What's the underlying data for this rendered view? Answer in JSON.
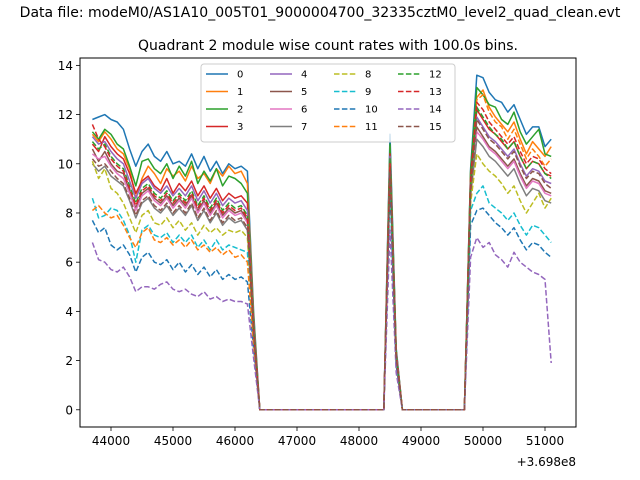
{
  "figure": {
    "suptitle": "Data file: modeM0/AS1A10_005T01_9000004700_32335cztM0_level2_quad_clean.evt"
  },
  "chart_data": {
    "type": "line",
    "title": "Quadrant 2 module wise count rates with 100.0s bins.",
    "xlabel": "",
    "ylabel": "",
    "x_offset_label": "+3.698e8",
    "xlim": [
      43500,
      51500
    ],
    "ylim": [
      -0.7,
      14.3
    ],
    "xticks": [
      44000,
      45000,
      46000,
      47000,
      48000,
      49000,
      50000,
      51000
    ],
    "xtick_labels": [
      "44000",
      "45000",
      "46000",
      "47000",
      "48000",
      "49000",
      "50000",
      "51000"
    ],
    "yticks": [
      0,
      2,
      4,
      6,
      8,
      10,
      12,
      14
    ],
    "ytick_labels": [
      "0",
      "2",
      "4",
      "6",
      "8",
      "10",
      "12",
      "14"
    ],
    "grid": false,
    "legend_position": "top-center",
    "legend_columns": 4,
    "x": [
      43700,
      43800,
      43900,
      44000,
      44100,
      44200,
      44300,
      44400,
      44500,
      44600,
      44700,
      44800,
      44900,
      45000,
      45100,
      45200,
      45300,
      45400,
      45500,
      45600,
      45700,
      45800,
      45900,
      46000,
      46100,
      46200,
      46300,
      46400,
      46500,
      48300,
      48400,
      48500,
      48600,
      48700,
      49700,
      49800,
      49900,
      50000,
      50100,
      50200,
      50300,
      50400,
      50500,
      50600,
      50700,
      50800,
      50900,
      51000,
      51100
    ],
    "series": [
      {
        "name": "0",
        "color": "#1f77b4",
        "dash": "solid",
        "values": [
          11.8,
          11.9,
          12.0,
          11.8,
          11.7,
          11.4,
          10.6,
          9.9,
          10.5,
          10.8,
          10.3,
          10.1,
          10.5,
          10.0,
          10.1,
          9.9,
          10.4,
          9.8,
          10.3,
          9.7,
          10.1,
          9.6,
          10.0,
          9.8,
          9.9,
          9.7,
          4.0,
          0,
          0,
          0,
          0,
          11.2,
          2.5,
          0,
          0,
          9.8,
          13.6,
          13.5,
          12.9,
          12.6,
          12.5,
          12.1,
          12.4,
          11.8,
          11.2,
          11.5,
          11.5,
          10.7,
          11.0
        ]
      },
      {
        "name": "1",
        "color": "#ff7f0e",
        "dash": "solid",
        "values": [
          11.2,
          10.9,
          11.3,
          11.0,
          10.6,
          10.4,
          9.8,
          8.6,
          9.4,
          9.9,
          9.6,
          9.2,
          9.8,
          9.5,
          9.7,
          9.3,
          9.9,
          9.4,
          9.6,
          9.2,
          9.8,
          9.5,
          9.9,
          9.6,
          9.7,
          9.2,
          3.8,
          0,
          0,
          0,
          0,
          10.7,
          2.4,
          0,
          0,
          9.6,
          12.7,
          13.0,
          12.3,
          11.9,
          11.6,
          11.3,
          11.7,
          11.0,
          10.4,
          10.9,
          10.6,
          10.3,
          10.7
        ]
      },
      {
        "name": "2",
        "color": "#2ca02c",
        "dash": "solid",
        "values": [
          11.3,
          11.0,
          11.4,
          11.2,
          10.8,
          10.6,
          9.9,
          9.1,
          10.1,
          10.2,
          9.8,
          9.6,
          10.0,
          9.4,
          9.9,
          9.5,
          10.1,
          9.2,
          9.7,
          9.3,
          9.8,
          9.1,
          9.5,
          9.4,
          9.2,
          8.8,
          3.7,
          0,
          0,
          0,
          0,
          10.8,
          2.4,
          0,
          0,
          9.7,
          13.1,
          12.8,
          12.4,
          12.3,
          11.8,
          11.6,
          12.1,
          11.3,
          10.8,
          11.1,
          11.4,
          10.4,
          10.3
        ]
      },
      {
        "name": "3",
        "color": "#d62728",
        "dash": "solid",
        "values": [
          10.8,
          10.5,
          11.1,
          10.7,
          10.4,
          10.2,
          9.6,
          8.8,
          9.3,
          9.5,
          9.1,
          8.9,
          9.4,
          8.8,
          9.2,
          8.9,
          9.3,
          8.7,
          9.1,
          8.6,
          9.0,
          8.5,
          8.8,
          8.6,
          8.7,
          8.4,
          3.5,
          0,
          0,
          0,
          0,
          10.4,
          2.3,
          0,
          0,
          9.4,
          12.2,
          11.8,
          11.4,
          11.2,
          10.9,
          10.6,
          10.9,
          10.3,
          9.8,
          10.1,
          10.0,
          9.6,
          9.5
        ]
      },
      {
        "name": "4",
        "color": "#9467bd",
        "dash": "solid",
        "values": [
          11.1,
          10.8,
          10.9,
          10.5,
          10.2,
          10.0,
          9.3,
          8.6,
          9.2,
          9.4,
          9.0,
          8.8,
          9.1,
          8.7,
          9.0,
          8.7,
          9.1,
          8.5,
          8.9,
          8.4,
          8.8,
          8.3,
          8.6,
          8.4,
          8.5,
          8.1,
          3.4,
          0,
          0,
          0,
          0,
          10.3,
          2.3,
          0,
          0,
          9.2,
          11.9,
          11.5,
          11.1,
          10.9,
          10.6,
          10.3,
          10.6,
          10.0,
          9.5,
          9.8,
          9.7,
          9.3,
          9.2
        ]
      },
      {
        "name": "5",
        "color": "#8c564b",
        "dash": "solid",
        "values": [
          10.6,
          10.1,
          10.5,
          10.0,
          9.7,
          9.6,
          8.9,
          8.2,
          8.8,
          9.0,
          8.6,
          8.4,
          8.7,
          8.3,
          8.6,
          8.3,
          8.7,
          8.1,
          8.5,
          8.0,
          8.4,
          7.9,
          8.2,
          8.0,
          8.1,
          7.7,
          3.3,
          0,
          0,
          0,
          0,
          10.1,
          2.2,
          0,
          0,
          9.0,
          11.5,
          11.1,
          10.7,
          10.5,
          10.2,
          9.9,
          10.2,
          9.6,
          9.1,
          9.4,
          9.3,
          8.9,
          8.8
        ]
      },
      {
        "name": "6",
        "color": "#e377c2",
        "dash": "solid",
        "values": [
          10.4,
          10.2,
          10.3,
          9.9,
          9.6,
          9.4,
          8.8,
          8.1,
          8.7,
          8.9,
          8.5,
          8.3,
          8.6,
          8.2,
          8.5,
          8.2,
          8.6,
          8.0,
          8.4,
          7.9,
          8.3,
          7.8,
          8.1,
          7.9,
          8.0,
          7.6,
          3.2,
          0,
          0,
          0,
          0,
          10.0,
          2.2,
          0,
          0,
          8.9,
          11.3,
          11.0,
          10.6,
          10.4,
          10.1,
          9.8,
          10.1,
          9.5,
          9.0,
          9.3,
          9.2,
          8.8,
          8.7
        ]
      },
      {
        "name": "7",
        "color": "#7f7f7f",
        "dash": "solid",
        "values": [
          10.0,
          9.7,
          9.9,
          9.5,
          9.3,
          9.1,
          8.5,
          7.8,
          8.4,
          8.6,
          8.2,
          8.0,
          8.3,
          7.9,
          8.2,
          7.9,
          8.3,
          7.7,
          8.1,
          7.6,
          8.0,
          7.5,
          7.8,
          7.6,
          7.7,
          7.3,
          3.1,
          0,
          0,
          0,
          0,
          9.8,
          2.1,
          0,
          0,
          8.7,
          11.0,
          10.7,
          10.3,
          10.1,
          9.8,
          9.5,
          9.8,
          9.2,
          8.7,
          9.0,
          8.9,
          8.5,
          8.4
        ]
      },
      {
        "name": "8",
        "color": "#bcbd22",
        "dash": "dashed",
        "values": [
          10.1,
          9.4,
          9.8,
          9.0,
          8.8,
          8.4,
          7.8,
          7.2,
          7.9,
          8.1,
          7.6,
          7.5,
          7.8,
          7.4,
          7.7,
          7.3,
          7.6,
          7.1,
          7.5,
          7.2,
          7.4,
          7.1,
          7.3,
          7.2,
          7.3,
          7.0,
          3.0,
          0,
          0,
          0,
          0,
          9.6,
          2.0,
          0,
          0,
          8.4,
          10.4,
          10.0,
          9.7,
          9.5,
          9.2,
          8.8,
          9.1,
          8.5,
          8.0,
          8.4,
          8.8,
          8.2,
          8.6
        ]
      },
      {
        "name": "9",
        "color": "#17becf",
        "dash": "dashed",
        "values": [
          8.6,
          7.8,
          7.9,
          8.2,
          8.1,
          7.7,
          7.1,
          6.0,
          7.3,
          7.5,
          7.1,
          7.0,
          7.2,
          6.8,
          7.1,
          6.8,
          7.1,
          6.6,
          6.9,
          6.5,
          6.9,
          6.5,
          6.7,
          6.6,
          6.5,
          6.4,
          2.8,
          0,
          0,
          0,
          0,
          9.3,
          1.9,
          0,
          0,
          8.1,
          8.8,
          9.1,
          8.4,
          8.2,
          8.0,
          7.7,
          8.0,
          7.5,
          7.1,
          7.5,
          7.4,
          7.1,
          6.8
        ]
      },
      {
        "name": "10",
        "color": "#1f77b4",
        "dash": "dashed",
        "values": [
          7.7,
          7.2,
          7.4,
          6.7,
          6.5,
          6.7,
          6.3,
          5.6,
          6.2,
          6.4,
          6.0,
          5.9,
          6.1,
          5.7,
          6.0,
          5.6,
          5.9,
          5.5,
          5.8,
          5.4,
          5.7,
          5.3,
          5.5,
          5.3,
          5.4,
          5.2,
          2.5,
          0,
          0,
          0,
          0,
          9.0,
          1.8,
          0,
          0,
          7.5,
          8.1,
          8.2,
          7.9,
          7.6,
          7.4,
          7.1,
          7.4,
          6.9,
          6.5,
          6.8,
          6.7,
          6.4,
          6.2
        ]
      },
      {
        "name": "11",
        "color": "#ff7f0e",
        "dash": "dashed",
        "values": [
          8.1,
          8.3,
          8.0,
          7.8,
          7.9,
          7.5,
          7.0,
          6.6,
          7.2,
          7.4,
          6.9,
          6.8,
          7.0,
          6.7,
          6.9,
          6.6,
          6.9,
          6.5,
          6.7,
          6.4,
          6.6,
          6.3,
          6.5,
          6.2,
          6.3,
          6.0,
          2.7,
          0,
          0,
          0,
          0,
          9.9,
          2.1,
          0,
          0,
          8.9,
          12.6,
          12.8,
          12.1,
          11.7,
          11.5,
          11.0,
          11.4,
          10.8,
          10.2,
          10.6,
          10.3,
          9.9,
          10.2
        ]
      },
      {
        "name": "12",
        "color": "#2ca02c",
        "dash": "dashed",
        "values": [
          10.9,
          10.6,
          10.8,
          10.3,
          10.0,
          9.8,
          9.1,
          8.4,
          9.0,
          9.2,
          8.8,
          8.6,
          8.9,
          8.5,
          8.8,
          8.5,
          8.9,
          8.3,
          8.7,
          8.2,
          8.6,
          8.1,
          8.4,
          8.2,
          8.3,
          7.9,
          3.3,
          0,
          0,
          0,
          0,
          10.2,
          2.2,
          0,
          0,
          9.1,
          12.3,
          11.9,
          11.5,
          11.2,
          11.0,
          10.6,
          10.9,
          10.3,
          9.8,
          10.1,
          10.0,
          9.6,
          9.4
        ]
      },
      {
        "name": "13",
        "color": "#d62728",
        "dash": "dashed",
        "values": [
          11.6,
          11.0,
          10.7,
          10.2,
          9.9,
          9.7,
          9.0,
          8.3,
          8.9,
          9.1,
          8.7,
          8.5,
          8.8,
          8.4,
          8.7,
          8.4,
          8.8,
          8.2,
          8.6,
          8.1,
          8.5,
          8.0,
          8.3,
          8.1,
          8.2,
          7.8,
          3.2,
          0,
          0,
          0,
          0,
          10.0,
          2.2,
          0,
          0,
          9.3,
          12.5,
          12.2,
          11.7,
          11.4,
          11.1,
          10.8,
          11.1,
          10.5,
          10.0,
          10.3,
          10.2,
          9.8,
          9.6
        ]
      },
      {
        "name": "14",
        "color": "#9467bd",
        "dash": "dashed",
        "values": [
          6.8,
          6.1,
          6.0,
          5.7,
          5.6,
          5.8,
          5.4,
          4.8,
          5.0,
          5.0,
          4.9,
          5.1,
          5.2,
          4.9,
          4.8,
          4.9,
          4.7,
          4.6,
          4.8,
          4.5,
          4.6,
          4.4,
          4.5,
          4.4,
          4.4,
          4.3,
          2.1,
          0,
          0,
          0,
          0,
          7.3,
          1.5,
          0,
          0,
          6.2,
          7.0,
          6.6,
          6.8,
          6.3,
          6.1,
          5.8,
          6.4,
          6.0,
          5.8,
          5.6,
          5.5,
          5.3,
          1.9
        ]
      },
      {
        "name": "15",
        "color": "#8c564b",
        "dash": "dashed",
        "values": [
          10.2,
          9.9,
          10.0,
          9.7,
          9.4,
          9.2,
          8.6,
          7.9,
          8.5,
          8.7,
          8.3,
          8.1,
          8.4,
          8.0,
          8.3,
          8.0,
          8.4,
          7.8,
          8.2,
          7.7,
          8.1,
          7.6,
          7.9,
          7.7,
          7.8,
          7.4,
          3.1,
          0,
          0,
          0,
          0,
          9.7,
          2.1,
          0,
          0,
          8.8,
          11.8,
          11.4,
          11.0,
          10.8,
          10.5,
          10.2,
          10.5,
          9.9,
          9.4,
          9.7,
          9.6,
          9.2,
          9.0
        ]
      }
    ]
  }
}
